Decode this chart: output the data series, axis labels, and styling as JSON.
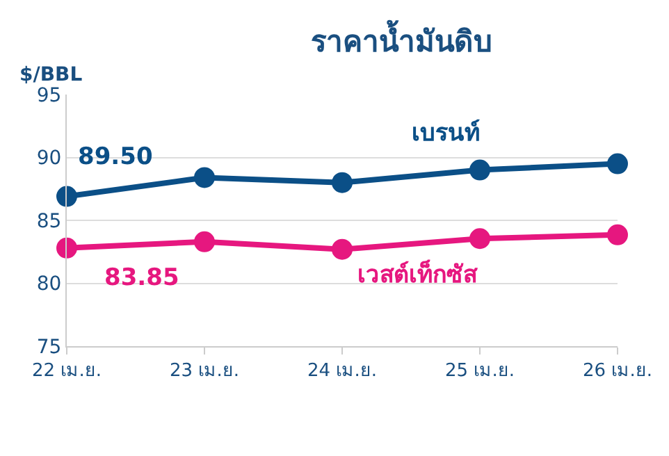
{
  "chart_data": {
    "type": "line",
    "title": "ราคาน้ำมันดิบ",
    "ylabel": "$/BBL",
    "categories": [
      "22 เม.ย.",
      "23 เม.ย.",
      "24 เม.ย.",
      "25 เม.ย.",
      "26 เม.ย."
    ],
    "series": [
      {
        "name": "เบรนท์",
        "color": "#0b4f87",
        "values": [
          86.9,
          88.4,
          88.0,
          89.0,
          89.5
        ]
      },
      {
        "name": "เวสต์เท็กซัส",
        "color": "#e6177f",
        "values": [
          82.8,
          83.3,
          82.7,
          83.55,
          83.85
        ]
      }
    ],
    "annotations": [
      "89.50",
      "83.85"
    ],
    "ylim": [
      75,
      95
    ],
    "yticks": [
      75,
      80,
      85,
      90,
      95
    ],
    "grid": "y",
    "marker": "circle",
    "line_style": "solid",
    "legend": false
  }
}
